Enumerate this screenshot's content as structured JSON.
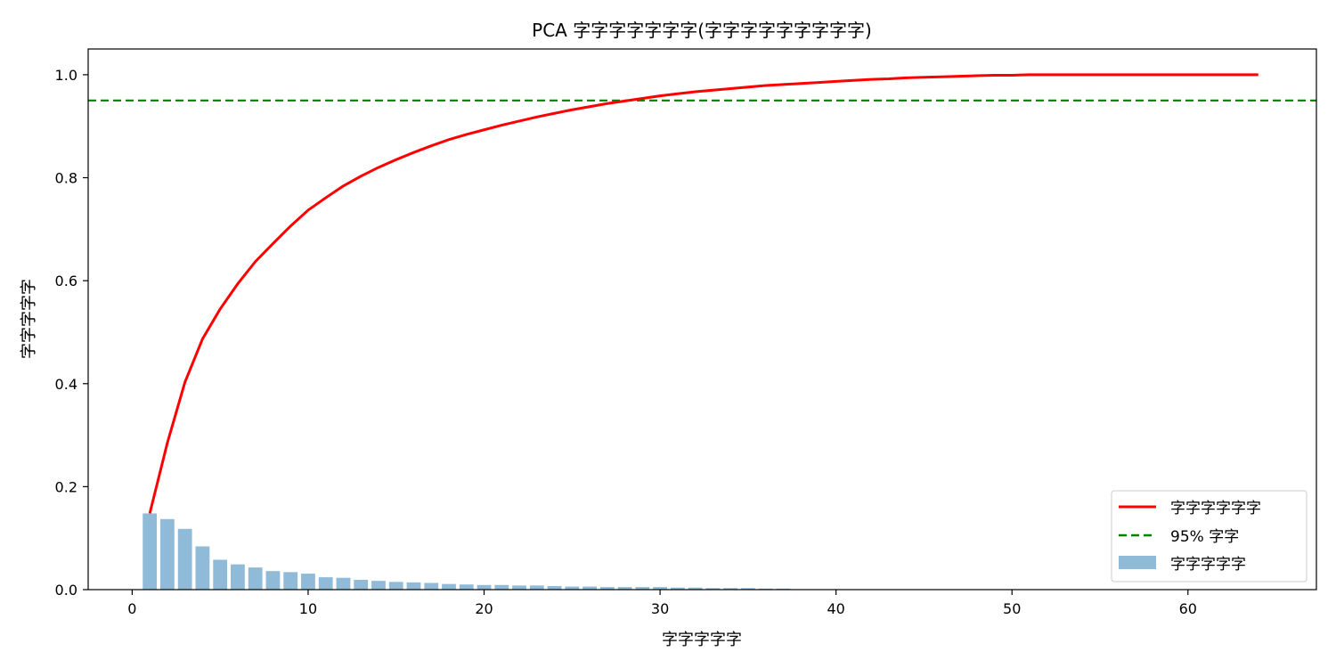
{
  "chart_data": {
    "type": "bar",
    "title": "PCA 字字字字字字字(字字字字字字字字字)",
    "xlabel": "字字字字字",
    "ylabel": "字字字字字",
    "xlim": [
      -2.5,
      67.3
    ],
    "ylim": [
      0,
      1.05
    ],
    "x_ticks": [
      0,
      10,
      20,
      30,
      40,
      50,
      60
    ],
    "y_ticks": [
      0.0,
      0.2,
      0.4,
      0.6,
      0.8,
      1.0
    ],
    "x_tick_labels": [
      "0",
      "10",
      "20",
      "30",
      "40",
      "50",
      "60"
    ],
    "y_tick_labels": [
      "0.0",
      "0.2",
      "0.4",
      "0.6",
      "0.8",
      "1.0"
    ],
    "grid": false,
    "legend_position": "lower right",
    "legend": [
      "字字字字字字",
      "95% 字字",
      "字字字字字"
    ],
    "colors": {
      "line": "#ff0000",
      "threshold": "#008000",
      "bars": "#1f77b4"
    },
    "series": [
      {
        "name": "字字字字字字",
        "kind": "line",
        "x": [
          1,
          2,
          3,
          4,
          5,
          6,
          7,
          8,
          9,
          10,
          11,
          12,
          13,
          14,
          15,
          16,
          17,
          18,
          19,
          20,
          21,
          22,
          23,
          24,
          25,
          26,
          27,
          28,
          29,
          30,
          31,
          32,
          33,
          34,
          35,
          36,
          37,
          38,
          39,
          40,
          41,
          42,
          43,
          44,
          45,
          46,
          47,
          48,
          49,
          50,
          51,
          52,
          53,
          54,
          55,
          56,
          57,
          58,
          59,
          60,
          61,
          62,
          63,
          64
        ],
        "y": [
          0.148,
          0.285,
          0.403,
          0.487,
          0.545,
          0.594,
          0.637,
          0.672,
          0.706,
          0.737,
          0.761,
          0.784,
          0.803,
          0.82,
          0.835,
          0.849,
          0.862,
          0.874,
          0.884,
          0.893,
          0.902,
          0.91,
          0.918,
          0.925,
          0.932,
          0.938,
          0.944,
          0.949,
          0.954,
          0.959,
          0.963,
          0.967,
          0.97,
          0.973,
          0.976,
          0.979,
          0.981,
          0.983,
          0.985,
          0.987,
          0.989,
          0.991,
          0.992,
          0.994,
          0.995,
          0.996,
          0.997,
          0.998,
          0.999,
          0.999,
          1.0,
          1.0,
          1.0,
          1.0,
          1.0,
          1.0,
          1.0,
          1.0,
          1.0,
          1.0,
          1.0,
          1.0,
          1.0,
          1.0
        ]
      },
      {
        "name": "95% 字字",
        "kind": "hline",
        "y": 0.95
      },
      {
        "name": "字字字字字",
        "kind": "bar",
        "x": [
          1,
          2,
          3,
          4,
          5,
          6,
          7,
          8,
          9,
          10,
          11,
          12,
          13,
          14,
          15,
          16,
          17,
          18,
          19,
          20,
          21,
          22,
          23,
          24,
          25,
          26,
          27,
          28,
          29,
          30,
          31,
          32,
          33,
          34,
          35,
          36,
          37
        ],
        "values": [
          0.148,
          0.137,
          0.118,
          0.084,
          0.058,
          0.049,
          0.043,
          0.036,
          0.034,
          0.031,
          0.024,
          0.023,
          0.019,
          0.017,
          0.015,
          0.014,
          0.013,
          0.011,
          0.01,
          0.009,
          0.009,
          0.008,
          0.008,
          0.007,
          0.006,
          0.006,
          0.005,
          0.005,
          0.005,
          0.005,
          0.004,
          0.004,
          0.003,
          0.003,
          0.003,
          0.002,
          0.002
        ]
      }
    ]
  }
}
